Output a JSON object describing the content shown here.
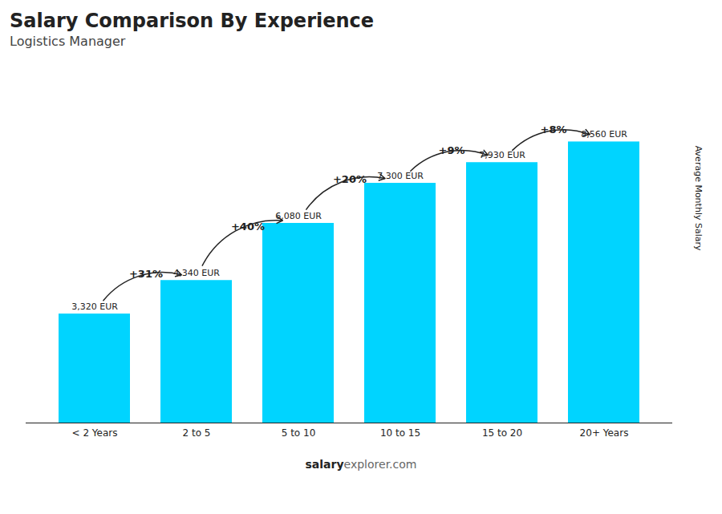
{
  "chart_data": {
    "type": "bar",
    "title": "Salary Comparison By Experience",
    "subtitle": "Logistics Manager",
    "ylabel": "Average Monthly Salary",
    "categories": [
      "< 2 Years",
      "2 to 5",
      "5 to 10",
      "10 to 15",
      "15 to 20",
      "20+ Years"
    ],
    "values": [
      3320,
      4340,
      6080,
      7300,
      7930,
      8560
    ],
    "value_labels": [
      "3,320 EUR",
      "4,340 EUR",
      "6,080 EUR",
      "7,300 EUR",
      "7,930 EUR",
      "8,560 EUR"
    ],
    "data_labels": true,
    "annotations": [
      "+31%",
      "+40%",
      "+20%",
      "+9%",
      "+8%"
    ],
    "watermark": [
      "salary",
      "explorer.com"
    ],
    "color": "#00d4ff",
    "ylim": [
      0,
      10500
    ],
    "tick_labels": "x",
    "grid": false
  }
}
